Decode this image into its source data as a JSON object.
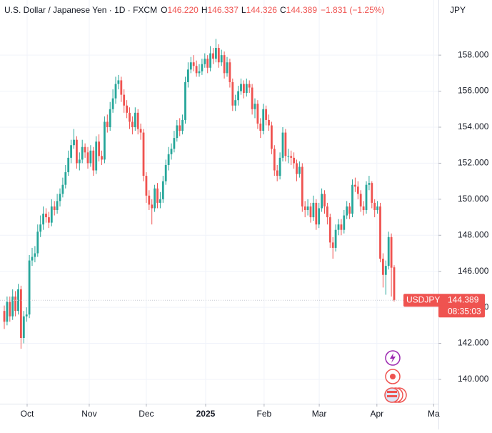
{
  "chart_data": {
    "type": "candlestick",
    "title": "U.S. Dollar / Japanese Yen · 1D · FXCM",
    "header_ohlc": [
      {
        "label": "O",
        "value": "146.220"
      },
      {
        "label": "H",
        "value": "146.337"
      },
      {
        "label": "L",
        "value": "144.326"
      },
      {
        "label": "C",
        "value": "144.389"
      }
    ],
    "change": "−1.831 (−1.25%)",
    "y_axis_label": "JPY",
    "countdown": "08:35:03",
    "up_color": "#26a69a",
    "down_color": "#ef5350",
    "grid": true,
    "xlim": [
      -1.54,
      155.9
    ],
    "xticks": [
      {
        "value": 8.2,
        "label": "Oct"
      },
      {
        "value": 30.5,
        "label": "Nov"
      },
      {
        "value": 51,
        "label": "Dec"
      },
      {
        "value": 72.3,
        "label": "2025"
      },
      {
        "value": 93.3,
        "label": "Feb"
      },
      {
        "value": 113.1,
        "label": "Mar"
      },
      {
        "value": 133.8,
        "label": "Apr"
      },
      {
        "value": 154.2,
        "label": "Ma"
      }
    ],
    "ylim": [
      138.65,
      161.06
    ],
    "yticks": [
      {
        "value": 140,
        "label": "140.000"
      },
      {
        "value": 142,
        "label": "142.000"
      },
      {
        "value": 144,
        "label": "144.000"
      },
      {
        "value": 146,
        "label": "146.000"
      },
      {
        "value": 148,
        "label": "148.000"
      },
      {
        "value": 150,
        "label": "150.000"
      },
      {
        "value": 152,
        "label": "152.000"
      },
      {
        "value": 154,
        "label": "154.000"
      },
      {
        "value": 156,
        "label": "156.000"
      },
      {
        "value": 158,
        "label": "158.000"
      }
    ],
    "series": [
      {
        "name": "USDJPY",
        "open": [
          143.8,
          143.2,
          144.3,
          143.5,
          144.6,
          143.8,
          145.0,
          142.3,
          143.5,
          143.6,
          146.6,
          146.8,
          147.0,
          148.2,
          148.6,
          149.2,
          149.0,
          148.7,
          149.6,
          149.4,
          149.9,
          150.3,
          150.8,
          151.5,
          152.3,
          153.0,
          153.3,
          152.0,
          152.2,
          152.9,
          152.6,
          152.0,
          152.7,
          151.6,
          153.2,
          152.4,
          152.2,
          154.3,
          154.0,
          155.0,
          155.6,
          156.4,
          156.6,
          155.8,
          155.2,
          154.8,
          154.3,
          154.0,
          154.8,
          153.9,
          153.7,
          151.3,
          150.2,
          149.7,
          149.5,
          150.6,
          149.8,
          150.0,
          151.0,
          151.9,
          152.5,
          152.8,
          153.4,
          154.1,
          153.8,
          154.4,
          156.5,
          157.2,
          157.6,
          157.4,
          157.0,
          157.1,
          157.5,
          157.8,
          157.3,
          158.1,
          157.8,
          158.4,
          157.6,
          158.0,
          157.0,
          157.6,
          156.5,
          155.2,
          155.5,
          156.0,
          156.4,
          155.9,
          156.4,
          156.2,
          155.0,
          155.3,
          154.2,
          153.8,
          155.0,
          154.4,
          154.1,
          152.8,
          151.6,
          151.3,
          152.3,
          153.7,
          152.4,
          152.4,
          152.3,
          152.0,
          151.4,
          151.8,
          149.6,
          149.4,
          149.6,
          149.0,
          149.8,
          148.6,
          149.5,
          150.3,
          149.6,
          149.0,
          147.6,
          147.3,
          148.3,
          148.6,
          148.3,
          149.1,
          149.6,
          149.2,
          150.8,
          150.7,
          150.3,
          149.6,
          149.4,
          150.8,
          150.9,
          149.8,
          149.4,
          149.6,
          146.7,
          145.8,
          146.3,
          147.9,
          146.22
        ],
        "high": [
          144.1,
          144.6,
          144.6,
          145.0,
          144.9,
          145.3,
          145.2,
          143.8,
          144.0,
          146.9,
          147.3,
          147.4,
          148.6,
          149.1,
          149.6,
          149.5,
          149.3,
          150.0,
          149.9,
          150.3,
          150.6,
          151.2,
          151.9,
          152.7,
          153.3,
          153.9,
          153.5,
          152.6,
          153.3,
          153.1,
          152.9,
          153.0,
          152.9,
          153.5,
          153.6,
          152.7,
          154.6,
          154.7,
          155.4,
          156.1,
          156.8,
          156.9,
          156.8,
          156.1,
          155.5,
          155.1,
          154.6,
          155.1,
          155.0,
          154.2,
          153.9,
          151.5,
          150.5,
          150.0,
          150.8,
          150.9,
          150.4,
          151.3,
          152.2,
          152.9,
          153.1,
          153.8,
          154.4,
          154.5,
          154.7,
          156.8,
          157.6,
          157.9,
          158.0,
          157.7,
          157.5,
          157.8,
          158.1,
          158.0,
          158.5,
          158.4,
          158.9,
          158.6,
          158.3,
          158.2,
          157.9,
          157.8,
          156.7,
          155.8,
          156.3,
          156.7,
          156.6,
          156.7,
          156.6,
          156.4,
          155.6,
          155.5,
          154.5,
          155.3,
          155.2,
          154.7,
          154.3,
          153.0,
          151.9,
          152.6,
          154.0,
          153.9,
          152.8,
          152.7,
          152.6,
          152.2,
          152.1,
          152.0,
          149.9,
          150.0,
          149.8,
          150.2,
          150.0,
          149.8,
          150.6,
          150.5,
          149.8,
          149.2,
          147.9,
          148.6,
          148.9,
          148.9,
          149.4,
          149.9,
          149.8,
          151.1,
          151.2,
          151.0,
          150.5,
          149.9,
          151.0,
          151.3,
          151.0,
          150.0,
          149.9,
          149.8,
          147.0,
          146.6,
          148.2,
          148.1,
          146.337
        ],
        "low": [
          142.8,
          143.0,
          143.2,
          143.3,
          143.5,
          143.6,
          141.7,
          142.0,
          143.2,
          143.4,
          146.3,
          146.5,
          146.8,
          147.9,
          148.3,
          148.7,
          148.4,
          148.5,
          149.1,
          149.2,
          149.6,
          150.1,
          150.6,
          151.3,
          152.0,
          152.8,
          151.7,
          151.6,
          152.0,
          152.3,
          151.7,
          151.8,
          151.3,
          151.4,
          152.1,
          151.9,
          152.0,
          153.7,
          153.8,
          154.8,
          155.3,
          156.1,
          155.4,
          154.8,
          154.5,
          153.9,
          153.6,
          153.8,
          153.6,
          153.3,
          151.0,
          149.8,
          149.4,
          148.6,
          149.3,
          149.5,
          149.5,
          149.8,
          150.8,
          151.6,
          152.2,
          152.6,
          153.2,
          153.5,
          153.6,
          154.2,
          156.2,
          157.0,
          157.1,
          156.8,
          156.8,
          156.9,
          157.3,
          157.0,
          157.1,
          157.5,
          157.6,
          157.3,
          157.4,
          156.7,
          156.8,
          156.2,
          154.9,
          154.9,
          155.2,
          155.8,
          155.6,
          155.7,
          155.9,
          154.7,
          154.5,
          153.9,
          153.4,
          153.6,
          154.1,
          153.8,
          152.5,
          151.3,
          151.0,
          151.1,
          152.1,
          152.1,
          152.0,
          151.9,
          151.7,
          151.0,
          151.2,
          149.3,
          149.0,
          149.1,
          148.7,
          148.8,
          148.3,
          148.4,
          149.3,
          149.2,
          148.6,
          147.3,
          146.7,
          147.1,
          148.0,
          148.0,
          148.1,
          148.9,
          148.9,
          149.0,
          150.4,
          150.0,
          149.3,
          149.1,
          149.2,
          150.5,
          149.5,
          149.0,
          149.2,
          146.5,
          145.1,
          144.7,
          146.1,
          144.6,
          144.326
        ],
        "close": [
          143.2,
          144.3,
          143.5,
          144.6,
          143.8,
          145.0,
          142.3,
          143.5,
          143.6,
          146.6,
          146.8,
          147.0,
          148.2,
          148.6,
          149.2,
          149.0,
          148.7,
          149.6,
          149.4,
          149.9,
          150.3,
          150.8,
          151.5,
          152.3,
          153.0,
          153.3,
          152.0,
          152.2,
          152.9,
          152.6,
          152.0,
          152.7,
          151.6,
          153.2,
          152.4,
          152.2,
          154.3,
          154.0,
          155.0,
          155.6,
          156.4,
          156.6,
          155.8,
          155.2,
          154.8,
          154.3,
          154.0,
          154.8,
          153.9,
          153.7,
          151.3,
          150.2,
          149.7,
          149.5,
          150.6,
          149.8,
          150.0,
          151.0,
          151.9,
          152.5,
          152.8,
          153.4,
          154.1,
          153.8,
          154.4,
          156.5,
          157.2,
          157.6,
          157.4,
          157.0,
          157.1,
          157.5,
          157.8,
          157.3,
          158.1,
          157.8,
          158.4,
          157.6,
          158.0,
          157.0,
          157.6,
          156.5,
          155.2,
          155.5,
          156.0,
          156.4,
          155.9,
          156.4,
          156.2,
          155.0,
          155.3,
          154.2,
          153.8,
          155.0,
          154.4,
          154.1,
          152.8,
          151.6,
          151.3,
          152.3,
          153.7,
          152.4,
          152.4,
          152.3,
          152.0,
          151.4,
          151.8,
          149.6,
          149.4,
          149.6,
          149.0,
          149.8,
          148.6,
          149.5,
          150.3,
          149.6,
          149.0,
          147.6,
          147.3,
          148.3,
          148.6,
          148.3,
          149.1,
          149.6,
          149.2,
          150.8,
          150.7,
          150.3,
          149.6,
          149.4,
          150.8,
          150.9,
          149.8,
          149.4,
          149.6,
          146.7,
          145.8,
          146.3,
          147.9,
          146.2,
          144.389
        ]
      }
    ]
  }
}
